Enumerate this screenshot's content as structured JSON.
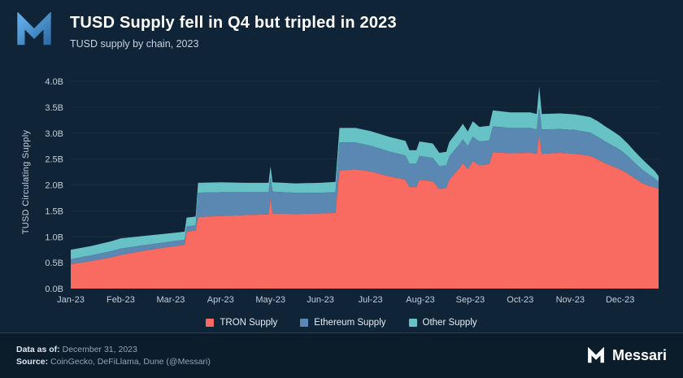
{
  "header": {
    "title": "TUSD Supply fell in Q4 but tripled in 2023",
    "subtitle": "TUSD supply by chain, 2023"
  },
  "chart_data": {
    "type": "area",
    "stacked": true,
    "title": "TUSD Supply fell in Q4 but tripled in 2023",
    "subtitle": "TUSD supply by chain, 2023",
    "xlabel": "",
    "ylabel": "TUSD Circulating Supply",
    "ylim": [
      0,
      4
    ],
    "ytick_step": 0.5,
    "ytick_labels": [
      "0.0B",
      "0.5B",
      "1.0B",
      "1.5B",
      "2.0B",
      "2.5B",
      "3.0B",
      "3.5B",
      "4.0B"
    ],
    "xtick_labels": [
      "Jan-23",
      "Feb-23",
      "Mar-23",
      "Apr-23",
      "May-23",
      "Jun-23",
      "Jul-23",
      "Aug-23",
      "Sep-23",
      "Oct-23",
      "Nov-23",
      "Dec-23"
    ],
    "x_unit": "months since Jan-23",
    "x": [
      0,
      0.4,
      0.8,
      1.0,
      1.4,
      1.8,
      2.1,
      2.28,
      2.32,
      2.5,
      2.55,
      3.0,
      3.5,
      3.96,
      4.0,
      4.04,
      4.5,
      5.0,
      5.3,
      5.38,
      5.7,
      6.0,
      6.4,
      6.7,
      6.78,
      6.92,
      6.98,
      7.25,
      7.38,
      7.52,
      7.58,
      7.78,
      7.85,
      7.95,
      8.05,
      8.18,
      8.38,
      8.45,
      8.8,
      9.2,
      9.33,
      9.38,
      9.43,
      9.8,
      10.1,
      10.4,
      10.55,
      10.7,
      10.85,
      11.0,
      11.15,
      11.3,
      11.45,
      11.58,
      11.7,
      11.77
    ],
    "series": [
      {
        "name": "TRON Supply",
        "color": "#F96B60",
        "values": [
          0.47,
          0.53,
          0.6,
          0.65,
          0.72,
          0.78,
          0.82,
          0.84,
          1.1,
          1.12,
          1.38,
          1.4,
          1.42,
          1.43,
          1.74,
          1.45,
          1.44,
          1.45,
          1.46,
          2.28,
          2.3,
          2.26,
          2.16,
          2.1,
          1.96,
          1.96,
          2.1,
          2.07,
          1.92,
          1.94,
          2.1,
          2.32,
          2.42,
          2.3,
          2.46,
          2.38,
          2.4,
          2.63,
          2.61,
          2.62,
          2.6,
          2.97,
          2.6,
          2.62,
          2.6,
          2.56,
          2.49,
          2.42,
          2.36,
          2.3,
          2.22,
          2.12,
          2.03,
          1.98,
          1.95,
          1.93
        ]
      },
      {
        "name": "Ethereum Supply",
        "color": "#5B88B2",
        "values": [
          0.1,
          0.11,
          0.12,
          0.12,
          0.11,
          0.1,
          0.1,
          0.1,
          0.1,
          0.1,
          0.47,
          0.46,
          0.44,
          0.43,
          0.42,
          0.42,
          0.41,
          0.4,
          0.4,
          0.54,
          0.52,
          0.5,
          0.48,
          0.47,
          0.45,
          0.45,
          0.46,
          0.45,
          0.44,
          0.44,
          0.45,
          0.46,
          0.46,
          0.45,
          0.47,
          0.46,
          0.46,
          0.5,
          0.49,
          0.48,
          0.47,
          0.53,
          0.47,
          0.46,
          0.46,
          0.45,
          0.44,
          0.42,
          0.4,
          0.38,
          0.34,
          0.3,
          0.26,
          0.22,
          0.17,
          0.13
        ]
      },
      {
        "name": "Other Supply",
        "color": "#66C2C4",
        "values": [
          0.18,
          0.18,
          0.19,
          0.2,
          0.18,
          0.17,
          0.16,
          0.16,
          0.17,
          0.17,
          0.19,
          0.19,
          0.18,
          0.18,
          0.2,
          0.18,
          0.18,
          0.19,
          0.2,
          0.28,
          0.28,
          0.28,
          0.28,
          0.28,
          0.26,
          0.26,
          0.28,
          0.28,
          0.26,
          0.26,
          0.28,
          0.3,
          0.3,
          0.28,
          0.3,
          0.28,
          0.28,
          0.31,
          0.3,
          0.3,
          0.3,
          0.4,
          0.3,
          0.3,
          0.3,
          0.3,
          0.3,
          0.29,
          0.28,
          0.26,
          0.24,
          0.22,
          0.2,
          0.17,
          0.14,
          0.11
        ]
      }
    ],
    "legend_position": "bottom",
    "grid": false
  },
  "footer": {
    "data_as_of_label": "Data as of:",
    "data_as_of_value": "December 31, 2023",
    "source_label": "Source:",
    "source_value": "CoinGecko, DeFiLlama, Dune (@Messari)",
    "brand": "Messari"
  },
  "colors": {
    "background": "#0f2437",
    "footer_background": "#0b1c2b",
    "tron": "#F96B60",
    "ethereum": "#5B88B2",
    "other": "#66C2C4",
    "axis_text": "#c3cfdb",
    "logo_blue_light": "#5FA9E6",
    "logo_blue_dark": "#2E6CA4"
  }
}
